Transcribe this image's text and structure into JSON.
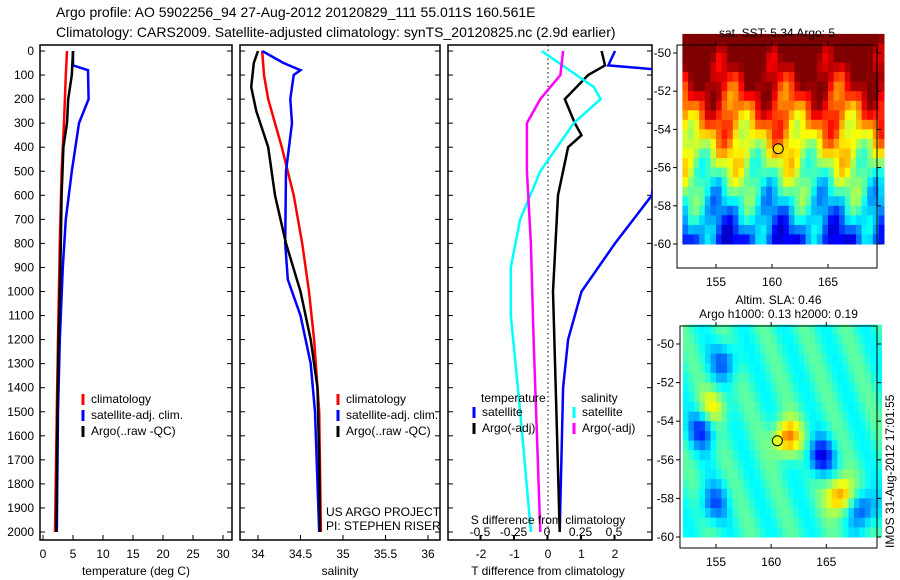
{
  "header": {
    "line1": "Argo profile: AO 5902256_94 27-Aug-2012 20120829_111 55.011S 160.561E",
    "line2": "Climatology: CARS2009. Satellite-adjusted climatology: synTS_20120825.nc (2.9d earlier)"
  },
  "colors": {
    "climatology": "#ff0000",
    "satellite": "#0000ff",
    "argo": "#000000",
    "s_sat": "#00ffff",
    "s_argo": "#ff00ff"
  },
  "chart_data": [
    {
      "type": "line",
      "id": "temperature",
      "xlabel": "temperature (deg C)",
      "ylabel": "",
      "xlim": [
        -2,
        31
      ],
      "ylim": [
        2050,
        0
      ],
      "xticks": [
        0,
        5,
        10,
        15,
        20,
        25,
        30
      ],
      "yticks": [
        0,
        100,
        200,
        300,
        400,
        500,
        600,
        700,
        800,
        900,
        1000,
        1100,
        1200,
        1300,
        1400,
        1500,
        1600,
        1700,
        1800,
        1900,
        2000
      ],
      "legend": [
        "climatology",
        "satellite-adj. clim.",
        "Argo(..raw -QC)"
      ],
      "series": [
        {
          "name": "climatology",
          "color": "#ff0000",
          "depth": [
            0,
            100,
            300,
            500,
            800,
            1200,
            1500,
            2000
          ],
          "values": [
            4.0,
            3.8,
            3.5,
            3.1,
            2.8,
            2.5,
            2.3,
            2.0
          ]
        },
        {
          "name": "satellite-adj. clim.",
          "color": "#0000ff",
          "depth": [
            0,
            60,
            80,
            200,
            300,
            500,
            700,
            900,
            1200,
            1500,
            2000
          ],
          "values": [
            5.0,
            5.0,
            7.5,
            7.6,
            6.0,
            4.8,
            3.8,
            3.3,
            2.8,
            2.5,
            2.3
          ]
        },
        {
          "name": "Argo(..raw -QC)",
          "color": "#000000",
          "depth": [
            0,
            100,
            200,
            300,
            400,
            600,
            900,
            1200,
            1500,
            2000
          ],
          "values": [
            5.0,
            4.8,
            4.2,
            4.0,
            3.4,
            3.1,
            2.9,
            2.6,
            2.4,
            2.2
          ]
        }
      ]
    },
    {
      "type": "line",
      "id": "salinity",
      "xlabel": "salinity",
      "xlim": [
        33.8,
        36.2
      ],
      "ylim": [
        2050,
        0
      ],
      "xticks": [
        34,
        34.5,
        35,
        35.5,
        36
      ],
      "legend": [
        "climatology",
        "satellite-adj. clim.",
        "Argo(..raw -QC)"
      ],
      "annotation": [
        "US ARGO PROJECT",
        "PI: STEPHEN RISER"
      ],
      "series": [
        {
          "name": "climatology",
          "color": "#ff0000",
          "depth": [
            0,
            100,
            200,
            400,
            600,
            800,
            1000,
            1200,
            1500,
            2000
          ],
          "values": [
            34.05,
            34.07,
            34.12,
            34.28,
            34.42,
            34.52,
            34.6,
            34.66,
            34.72,
            34.74
          ]
        },
        {
          "name": "satellite-adj. clim.",
          "color": "#0000ff",
          "depth": [
            0,
            50,
            80,
            100,
            200,
            300,
            500,
            800,
            950,
            1100,
            1300,
            1500,
            2000
          ],
          "values": [
            34.05,
            34.3,
            34.5,
            34.42,
            34.38,
            34.4,
            34.33,
            34.32,
            34.35,
            34.5,
            34.62,
            34.67,
            34.72
          ]
        },
        {
          "name": "Argo(..raw -QC)",
          "color": "#000000",
          "depth": [
            0,
            50,
            150,
            250,
            400,
            600,
            800,
            1000,
            1200,
            1400,
            1700,
            2000
          ],
          "values": [
            34.0,
            33.95,
            33.92,
            33.98,
            34.12,
            34.2,
            34.33,
            34.5,
            34.62,
            34.7,
            34.72,
            34.73
          ]
        }
      ]
    },
    {
      "type": "line",
      "id": "differences",
      "xlabel": "T difference from climatology",
      "x2label": "S difference from climatology",
      "xlim": [
        -3,
        3
      ],
      "x2lim": [
        -0.75,
        0.75
      ],
      "ylim": [
        2050,
        0
      ],
      "xticks": [
        -2,
        -1,
        0,
        1,
        2
      ],
      "x2ticks": [
        -0.5,
        -0.25,
        0,
        0.25,
        0.5
      ],
      "legend_titles": [
        "temperature",
        "salinity"
      ],
      "legend": [
        "satellite",
        "Argo(-adj)",
        "satellite",
        "Argo(-adj)"
      ],
      "series": [
        {
          "name": "T satellite",
          "axis": "T",
          "color": "#0000ff",
          "depth": [
            0,
            60,
            80,
            600,
            800,
            1000,
            1200,
            1400,
            2000
          ],
          "values": [
            2.0,
            1.8,
            3.5,
            3.1,
            2.0,
            1.0,
            0.6,
            0.45,
            0.35
          ]
        },
        {
          "name": "T Argo(-adj)",
          "axis": "T",
          "color": "#000000",
          "depth": [
            0,
            60,
            100,
            200,
            300,
            350,
            400,
            600,
            1000,
            1500,
            2000
          ],
          "values": [
            1.6,
            1.7,
            1.2,
            0.5,
            0.8,
            1.0,
            0.6,
            0.3,
            0.15,
            0.25,
            0.35
          ]
        },
        {
          "name": "S satellite",
          "axis": "S",
          "color": "#00ffff",
          "depth": [
            0,
            150,
            200,
            300,
            500,
            700,
            900,
            1100,
            1500,
            2000
          ],
          "values": [
            -0.04,
            0.35,
            0.4,
            0.2,
            -0.05,
            -0.2,
            -0.27,
            -0.27,
            -0.2,
            -0.12
          ]
        },
        {
          "name": "S Argo(-adj)",
          "axis": "S",
          "color": "#ff00ff",
          "depth": [
            0,
            100,
            200,
            300,
            500,
            800,
            1200,
            2000
          ],
          "values": [
            0.12,
            0.1,
            -0.05,
            -0.15,
            -0.15,
            -0.12,
            -0.1,
            -0.05
          ]
        }
      ]
    },
    {
      "type": "heatmap",
      "id": "sst_map",
      "title": "sat. SST: 5.34  Argo: 5",
      "xticks": [
        155,
        160,
        165
      ],
      "yticks": [
        -50,
        -52,
        -54,
        -56,
        -58,
        -60
      ],
      "argo_lon": 160.561,
      "argo_lat": -55.011
    },
    {
      "type": "heatmap",
      "id": "sla_map",
      "title": [
        "Altim. SLA: 0.46",
        "Argo h1000: 0.13 h2000: 0.19"
      ],
      "xticks": [
        155,
        160,
        165
      ],
      "yticks": [
        -50,
        -52,
        -54,
        -56,
        -58,
        -60
      ],
      "argo_lon": 160.561,
      "argo_lat": -55.011
    }
  ],
  "footer": {
    "stamp": "IMOS 31-Aug-2012 17:01:55"
  }
}
